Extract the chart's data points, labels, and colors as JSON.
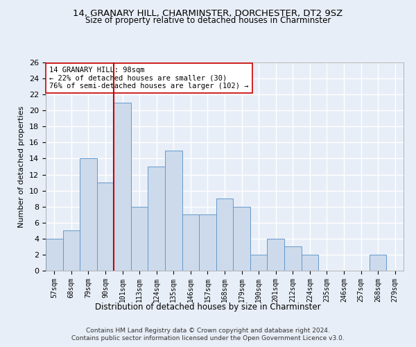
{
  "title": "14, GRANARY HILL, CHARMINSTER, DORCHESTER, DT2 9SZ",
  "subtitle": "Size of property relative to detached houses in Charminster",
  "xlabel": "Distribution of detached houses by size in Charminster",
  "ylabel": "Number of detached properties",
  "bar_labels": [
    "57sqm",
    "68sqm",
    "79sqm",
    "90sqm",
    "101sqm",
    "113sqm",
    "124sqm",
    "135sqm",
    "146sqm",
    "157sqm",
    "168sqm",
    "179sqm",
    "190sqm",
    "201sqm",
    "212sqm",
    "224sqm",
    "235sqm",
    "246sqm",
    "257sqm",
    "268sqm",
    "279sqm"
  ],
  "bar_values": [
    4,
    5,
    14,
    11,
    21,
    8,
    13,
    15,
    7,
    7,
    9,
    8,
    2,
    4,
    3,
    2,
    0,
    0,
    0,
    2,
    0
  ],
  "bar_color": "#ccdaeb",
  "bar_edge_color": "#6699cc",
  "vline_x_index": 4,
  "vline_color": "#cc0000",
  "annotation_text": "14 GRANARY HILL: 98sqm\n← 22% of detached houses are smaller (30)\n76% of semi-detached houses are larger (102) →",
  "annotation_box_color": "white",
  "annotation_box_edge_color": "#cc0000",
  "ylim": [
    0,
    26
  ],
  "yticks": [
    0,
    2,
    4,
    6,
    8,
    10,
    12,
    14,
    16,
    18,
    20,
    22,
    24,
    26
  ],
  "footer": "Contains HM Land Registry data © Crown copyright and database right 2024.\nContains public sector information licensed under the Open Government Licence v3.0.",
  "bg_color": "#e8eef7",
  "grid_color": "white"
}
